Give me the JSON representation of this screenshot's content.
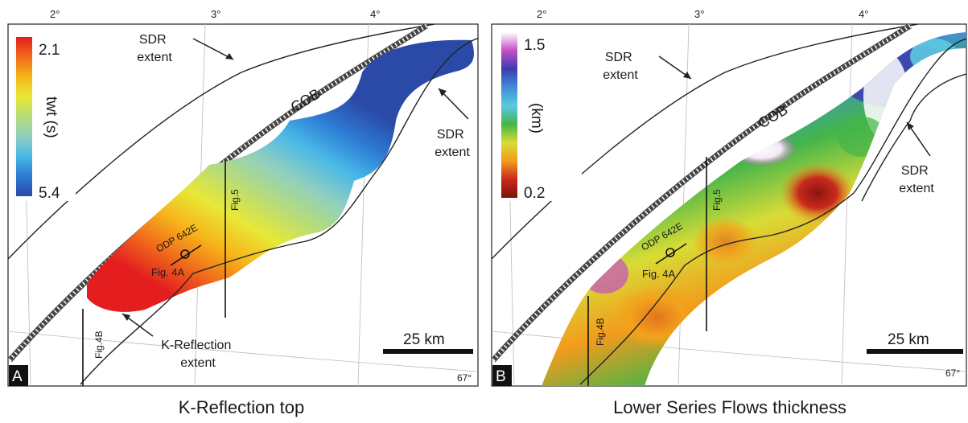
{
  "panels": [
    {
      "id": "A",
      "panel_letter": "A",
      "caption": "K-Reflection top",
      "lon_labels": [
        "2°",
        "3°",
        "4°"
      ],
      "lat_label": "67°",
      "colorbar": {
        "max_label": "2.1",
        "min_label": "5.4",
        "unit_label": "twt (s)",
        "colors": [
          "#e41e1e",
          "#f06a1c",
          "#f6b51a",
          "#e8e836",
          "#b7dc78",
          "#8fcfc0",
          "#48b8e8",
          "#2c7ad2",
          "#2b4aa8"
        ]
      },
      "labels": {
        "sdr_extent_1": [
          "SDR",
          "extent"
        ],
        "sdr_extent_2": [
          "SDR",
          "extent"
        ],
        "cob": "COB",
        "odp": "ODP 642E",
        "fig4a": "Fig. 4A",
        "fig5": "Fig.5",
        "fig4b": "Fig.4B",
        "extent_note": [
          "K-Reflection",
          "extent"
        ],
        "scale": "25 km"
      }
    },
    {
      "id": "B",
      "panel_letter": "B",
      "caption": "Lower Series Flows thickness",
      "lon_labels": [
        "2°",
        "3°",
        "4°"
      ],
      "lat_label": "67°",
      "colorbar": {
        "max_label": "1.5",
        "min_label": "0.2",
        "unit_label": "(km)",
        "colors": [
          "#ffffff",
          "#c44fc4",
          "#3c3caf",
          "#3f8ed9",
          "#5cc9df",
          "#43b54a",
          "#d8dc36",
          "#f29b1c",
          "#c92a1c",
          "#7e0f0f"
        ]
      },
      "labels": {
        "sdr_extent_1": [
          "SDR",
          "extent"
        ],
        "sdr_extent_2": [
          "SDR",
          "extent"
        ],
        "cob": "COB",
        "odp": "ODP 642E",
        "fig4a": "Fig. 4A",
        "fig5": "Fig.5",
        "fig4b": "Fig.4B",
        "scale": "25 km"
      }
    }
  ]
}
